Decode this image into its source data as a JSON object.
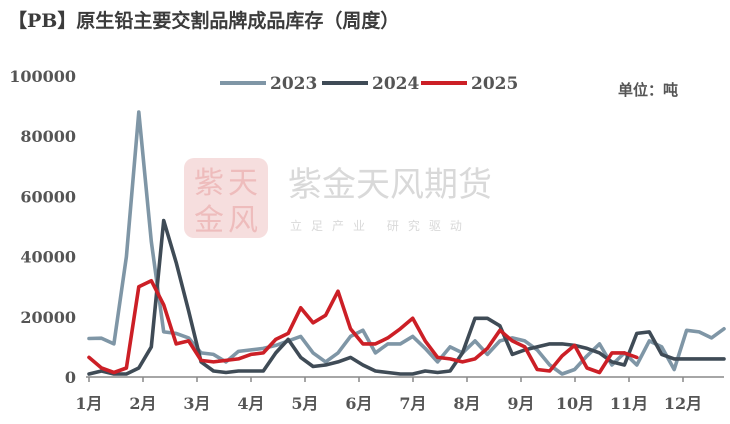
{
  "chart_data": {
    "type": "line",
    "title": "【PB】原生铅主要交割品牌成品库存（周度）",
    "unit": "单位：吨",
    "watermark": {
      "name": "紫金天风期货",
      "slogan": "立足产业 研究驱动",
      "logo_text": [
        "紫",
        "天",
        "金",
        "风"
      ]
    },
    "x_tick_labels": [
      "1月",
      "2月",
      "3月",
      "4月",
      "5月",
      "6月",
      "7月",
      "8月",
      "9月",
      "10月",
      "11月",
      "12月"
    ],
    "weeks_per_year": 52,
    "ylim": [
      0,
      100000
    ],
    "y_ticks": [
      0,
      20000,
      40000,
      60000,
      80000,
      100000
    ],
    "y_tick_labels": [
      "0",
      "20000",
      "40000",
      "60000",
      "80000",
      "100000"
    ],
    "grid": false,
    "legend_position": "top-center",
    "series": [
      {
        "name": "2023",
        "color": "#7f96a6",
        "x": [
          1,
          2,
          3,
          4,
          5,
          6,
          7,
          8,
          9,
          10,
          11,
          12,
          13,
          14,
          15,
          16,
          17,
          18,
          19,
          20,
          21,
          22,
          23,
          24,
          25,
          26,
          27,
          28,
          29,
          30,
          31,
          32,
          33,
          34,
          35,
          36,
          37,
          38,
          39,
          40,
          41,
          42,
          43,
          44,
          45,
          46,
          47,
          48,
          49,
          50,
          51,
          52
        ],
        "values": [
          12800,
          12900,
          11000,
          40000,
          88000,
          45000,
          15000,
          14500,
          13000,
          8000,
          7500,
          5000,
          8500,
          9000,
          9500,
          10500,
          12000,
          13500,
          8000,
          5000,
          8000,
          13500,
          15500,
          8000,
          11000,
          11000,
          13500,
          9500,
          5000,
          10000,
          8000,
          12000,
          7500,
          12000,
          13000,
          12000,
          9000,
          4000,
          1000,
          2500,
          7000,
          11000,
          4000,
          8000,
          4000,
          12000,
          10000,
          2500,
          15500,
          15000,
          13000,
          16000
        ]
      },
      {
        "name": "2024",
        "color": "#3f4b56",
        "x": [
          1,
          2,
          3,
          4,
          5,
          6,
          7,
          8,
          9,
          10,
          11,
          12,
          13,
          14,
          15,
          16,
          17,
          18,
          19,
          20,
          21,
          22,
          23,
          24,
          25,
          26,
          27,
          28,
          29,
          30,
          31,
          32,
          33,
          34,
          35,
          36,
          37,
          38,
          39,
          40,
          41,
          42,
          43,
          44,
          45,
          46,
          47,
          48,
          49,
          50,
          51,
          52
        ],
        "values": [
          1000,
          2000,
          1000,
          1000,
          3000,
          10000,
          52000,
          38000,
          22000,
          5000,
          2000,
          1500,
          2000,
          2000,
          2000,
          8000,
          12500,
          6500,
          3500,
          4000,
          5000,
          6500,
          4000,
          2000,
          1500,
          1000,
          1000,
          2000,
          1500,
          2000,
          8000,
          19500,
          19500,
          17000,
          7500,
          9000,
          10000,
          11000,
          11000,
          10500,
          9500,
          8000,
          5000,
          4000,
          14500,
          15000,
          7500,
          6000,
          6000,
          6000,
          6000,
          6000
        ]
      },
      {
        "name": "2025",
        "color": "#cc1f26",
        "x": [
          1,
          2,
          3,
          4,
          5,
          6,
          7,
          8,
          9,
          10,
          11,
          12,
          13,
          14,
          15,
          16,
          17,
          18,
          19,
          20,
          21,
          22,
          23,
          24,
          25,
          26,
          27,
          28,
          29,
          30,
          31,
          32,
          33,
          34,
          35,
          36,
          37,
          38,
          39,
          40,
          41,
          42,
          43,
          44,
          45
        ],
        "values": [
          6500,
          3000,
          1500,
          3000,
          30000,
          32000,
          24000,
          11000,
          12000,
          5500,
          5000,
          5500,
          6000,
          7500,
          8000,
          12500,
          14500,
          23000,
          18000,
          20500,
          28500,
          16000,
          11000,
          11000,
          13000,
          16000,
          19500,
          12000,
          6500,
          6000,
          5000,
          6000,
          9500,
          15500,
          12000,
          10000,
          2500,
          2000,
          7000,
          10500,
          3000,
          1500,
          8000,
          8000,
          6500
        ]
      }
    ]
  }
}
